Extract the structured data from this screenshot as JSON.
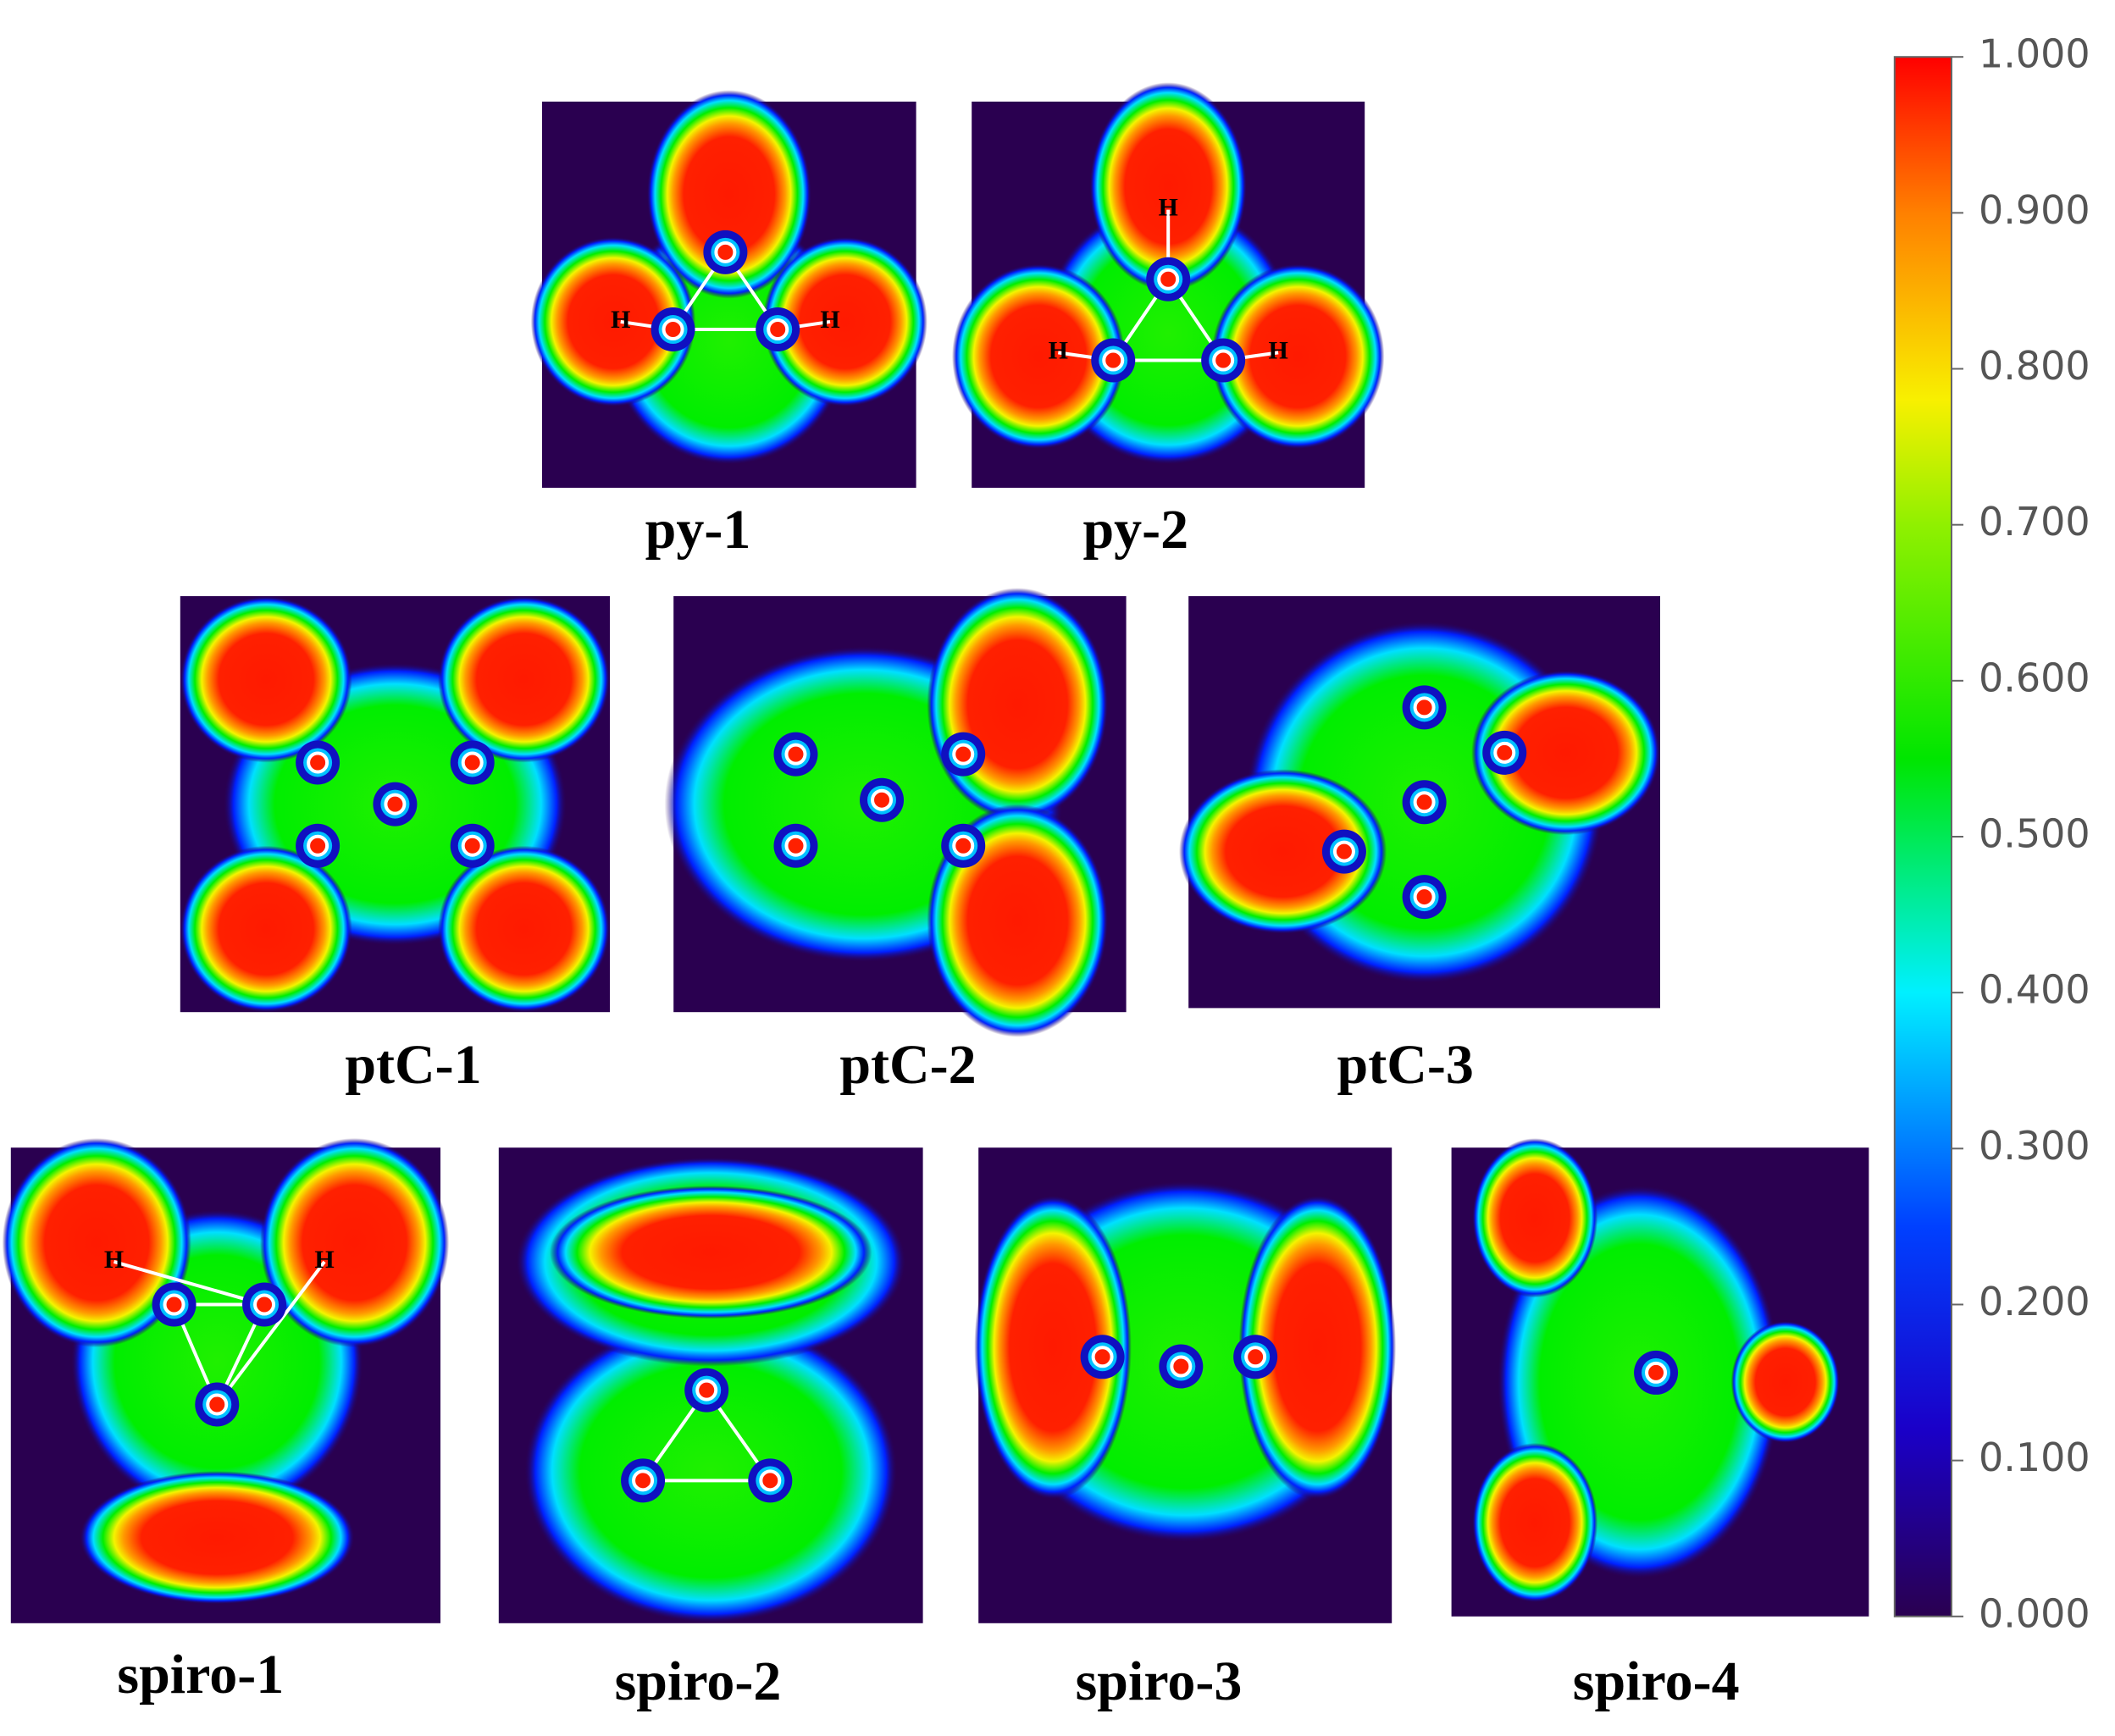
{
  "panels": [
    {
      "label": "py-1",
      "atom_labels": [
        "H",
        "H"
      ]
    },
    {
      "label": "py-2",
      "atom_labels": [
        "H",
        "H",
        "H"
      ]
    },
    {
      "label": "ptC-1",
      "atom_labels": []
    },
    {
      "label": "ptC-2",
      "atom_labels": []
    },
    {
      "label": "ptC-3",
      "atom_labels": []
    },
    {
      "label": "spiro-1",
      "atom_labels": [
        "H",
        "H"
      ]
    },
    {
      "label": "spiro-2",
      "atom_labels": []
    },
    {
      "label": "spiro-3",
      "atom_labels": []
    },
    {
      "label": "spiro-4",
      "atom_labels": []
    }
  ],
  "colorbar": {
    "range": [
      0,
      1
    ],
    "ticks": [
      {
        "value": 0,
        "label": "0.000"
      },
      {
        "value": 0.1,
        "label": "0.100"
      },
      {
        "value": 0.2,
        "label": "0.200"
      },
      {
        "value": 0.3,
        "label": "0.300"
      },
      {
        "value": 0.4,
        "label": "0.400"
      },
      {
        "value": 0.5,
        "label": "0.500"
      },
      {
        "value": 0.6,
        "label": "0.600"
      },
      {
        "value": 0.7,
        "label": "0.700"
      },
      {
        "value": 0.8,
        "label": "0.800"
      },
      {
        "value": 0.9,
        "label": "0.900"
      },
      {
        "value": 1,
        "label": "1.000"
      }
    ]
  }
}
